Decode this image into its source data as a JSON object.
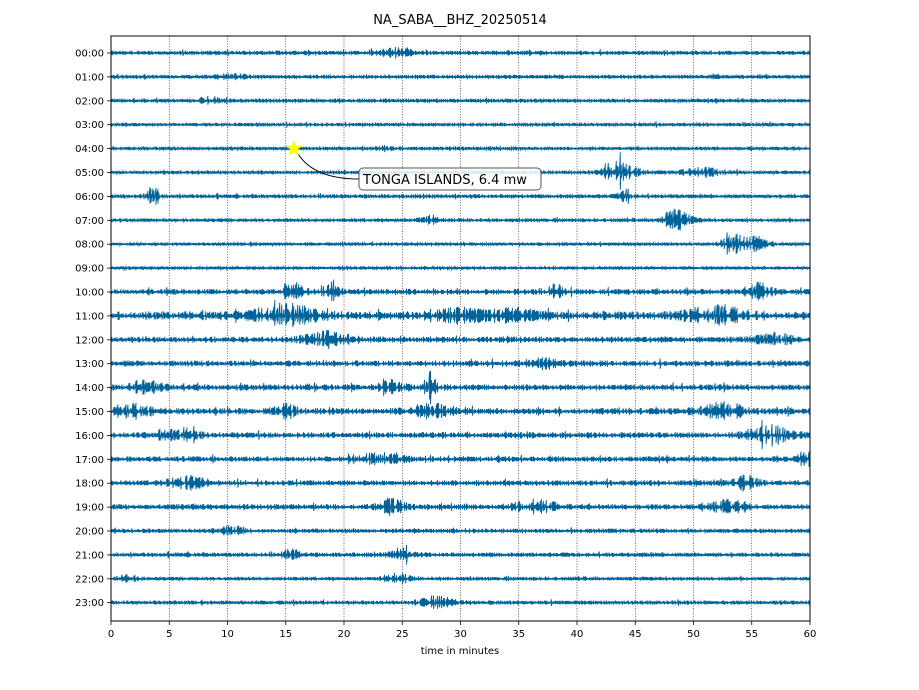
{
  "chart_data": {
    "type": "line",
    "title": "NA_SABA__BHZ_20250514",
    "xlabel": "time in minutes",
    "ylabel": "",
    "xlim": [
      0,
      60
    ],
    "x_ticks": [
      0,
      5,
      10,
      15,
      20,
      25,
      30,
      35,
      40,
      45,
      50,
      55,
      60
    ],
    "x_tick_labels": [
      "0",
      "5",
      "10",
      "15",
      "20",
      "25",
      "30",
      "35",
      "40",
      "45",
      "50",
      "55",
      "60"
    ],
    "grid": "vertical dotted",
    "trace_color": "#00639a",
    "rows": [
      {
        "label": "00:00",
        "noise": 0.22,
        "bursts": [
          [
            24.5,
            0.35,
            1.5
          ]
        ]
      },
      {
        "label": "01:00",
        "noise": 0.2,
        "bursts": [
          [
            10.5,
            0.25,
            1.2
          ]
        ]
      },
      {
        "label": "02:00",
        "noise": 0.2,
        "bursts": [
          [
            8.5,
            0.3,
            1.0
          ]
        ]
      },
      {
        "label": "03:00",
        "noise": 0.18,
        "bursts": []
      },
      {
        "label": "04:00",
        "noise": 0.18,
        "bursts": [
          [
            24.0,
            0.2,
            1.0
          ]
        ]
      },
      {
        "label": "05:00",
        "noise": 0.18,
        "bursts": [
          [
            42.8,
            0.7,
            0.8
          ],
          [
            44.0,
            0.85,
            1.2
          ],
          [
            51.0,
            0.35,
            2.0
          ]
        ]
      },
      {
        "label": "06:00",
        "noise": 0.2,
        "bursts": [
          [
            3.6,
            0.85,
            0.6
          ],
          [
            44.2,
            0.6,
            0.6
          ]
        ]
      },
      {
        "label": "07:00",
        "noise": 0.18,
        "bursts": [
          [
            27.5,
            0.35,
            1.0
          ],
          [
            48.5,
            0.95,
            1.2
          ]
        ]
      },
      {
        "label": "08:00",
        "noise": 0.16,
        "bursts": [
          [
            53.5,
            0.8,
            1.0
          ],
          [
            55.5,
            0.65,
            1.0
          ]
        ]
      },
      {
        "label": "09:00",
        "noise": 0.16,
        "bursts": []
      },
      {
        "label": "10:00",
        "noise": 0.28,
        "bursts": [
          [
            15.5,
            0.8,
            1.0
          ],
          [
            19.0,
            0.5,
            1.0
          ],
          [
            38.0,
            0.5,
            1.0
          ],
          [
            55.5,
            0.7,
            1.2
          ]
        ]
      },
      {
        "label": "11:00",
        "noise": 0.42,
        "bursts": [
          [
            15.0,
            0.85,
            2.5
          ],
          [
            30.0,
            0.45,
            2.0
          ],
          [
            34.5,
            0.5,
            2.0
          ],
          [
            52.0,
            0.75,
            2.5
          ]
        ]
      },
      {
        "label": "12:00",
        "noise": 0.3,
        "bursts": [
          [
            18.5,
            0.6,
            2.0
          ],
          [
            57.0,
            0.45,
            1.5
          ]
        ]
      },
      {
        "label": "13:00",
        "noise": 0.3,
        "bursts": [
          [
            37.0,
            0.35,
            1.5
          ]
        ]
      },
      {
        "label": "14:00",
        "noise": 0.3,
        "bursts": [
          [
            24.0,
            0.6,
            1.0
          ],
          [
            27.5,
            0.75,
            0.8
          ],
          [
            3.0,
            0.5,
            1.5
          ]
        ]
      },
      {
        "label": "15:00",
        "noise": 0.32,
        "bursts": [
          [
            27.5,
            0.5,
            2.0
          ],
          [
            52.5,
            0.65,
            2.0
          ],
          [
            2.0,
            0.5,
            1.5
          ],
          [
            15.0,
            0.55,
            1.0
          ]
        ]
      },
      {
        "label": "16:00",
        "noise": 0.3,
        "bursts": [
          [
            6.0,
            0.5,
            1.5
          ],
          [
            56.5,
            0.7,
            2.0
          ]
        ]
      },
      {
        "label": "17:00",
        "noise": 0.28,
        "bursts": [
          [
            23.0,
            0.4,
            2.0
          ],
          [
            59.5,
            0.7,
            0.6
          ]
        ]
      },
      {
        "label": "18:00",
        "noise": 0.28,
        "bursts": [
          [
            6.5,
            0.55,
            1.5
          ],
          [
            54.5,
            0.6,
            1.0
          ]
        ]
      },
      {
        "label": "19:00",
        "noise": 0.28,
        "bursts": [
          [
            24.0,
            0.65,
            1.0
          ],
          [
            36.5,
            0.5,
            2.0
          ],
          [
            53.0,
            0.5,
            1.5
          ]
        ]
      },
      {
        "label": "20:00",
        "noise": 0.22,
        "bursts": [
          [
            10.5,
            0.4,
            1.0
          ]
        ]
      },
      {
        "label": "21:00",
        "noise": 0.22,
        "bursts": [
          [
            25.0,
            0.55,
            1.0
          ],
          [
            15.5,
            0.4,
            0.8
          ]
        ]
      },
      {
        "label": "22:00",
        "noise": 0.18,
        "bursts": [
          [
            24.5,
            0.55,
            1.0
          ],
          [
            1.5,
            0.4,
            0.8
          ]
        ]
      },
      {
        "label": "23:00",
        "noise": 0.2,
        "bursts": [
          [
            28.0,
            0.5,
            1.5
          ]
        ]
      }
    ],
    "event": {
      "label": "TONGA ISLANDS, 6.4 mw",
      "row": "04:00",
      "minute": 15.7,
      "marker": "star",
      "marker_color": "#ffff00"
    }
  }
}
